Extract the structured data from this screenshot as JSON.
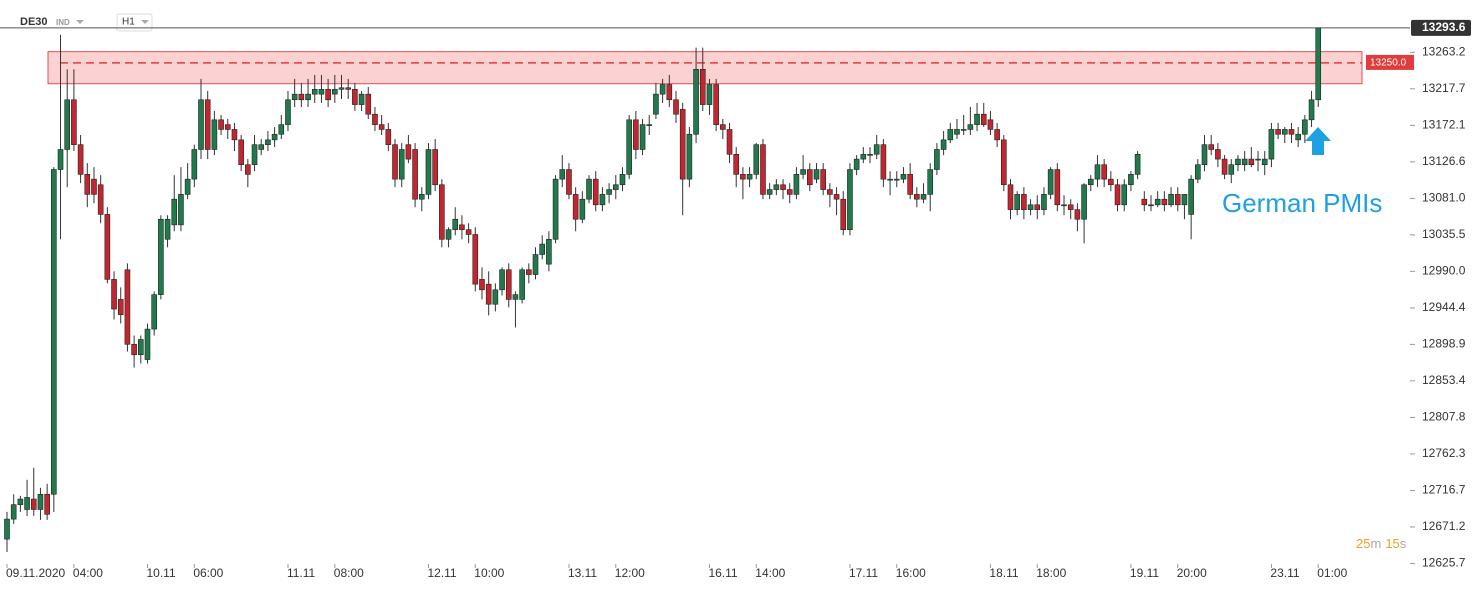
{
  "chart_data": {
    "type": "candlestick",
    "symbol": "DE30",
    "instrument_type": "IND",
    "timeframe": "H1",
    "up_color": "#1f7a4c",
    "down_color": "#c3262e",
    "ylim": [
      12625,
      13301
    ],
    "yticks": [
      13263.2,
      13217.7,
      13172.1,
      13126.6,
      {
        "value": 13081.0,
        "label": "13081.0"
      },
      13035.5,
      {
        "value": 12990.0,
        "label": "12990.0"
      },
      12944.4,
      12898.9,
      12853.4,
      12807.8,
      12762.3,
      12716.7,
      12671.2,
      12625.7
    ],
    "last_price": 13293.6,
    "resistance_level": {
      "value": 13250.0,
      "label": "13250.0"
    },
    "resistance_zone": [
      13224,
      13264
    ],
    "annotation": "German PMIs",
    "countdown": {
      "minutes": 25,
      "minutes_unit": "m",
      "seconds": 15,
      "seconds_unit": "s"
    },
    "categories": [
      "09.11.2020",
      null,
      null,
      null,
      null,
      null,
      null,
      null,
      null,
      null,
      "04:00",
      null,
      null,
      null,
      null,
      null,
      null,
      null,
      null,
      null,
      null,
      "10.11",
      null,
      null,
      null,
      null,
      null,
      null,
      "06:00",
      null,
      null,
      null,
      null,
      null,
      null,
      null,
      null,
      null,
      null,
      null,
      null,
      null,
      "11.11",
      null,
      null,
      null,
      null,
      null,
      null,
      "08:00",
      null,
      null,
      null,
      null,
      null,
      null,
      null,
      null,
      null,
      null,
      null,
      null,
      null,
      "12.11",
      null,
      null,
      null,
      null,
      null,
      null,
      "10:00",
      null,
      null,
      null,
      null,
      null,
      null,
      null,
      null,
      null,
      null,
      null,
      null,
      null,
      "13.11",
      null,
      null,
      null,
      null,
      null,
      null,
      "12:00",
      null,
      null,
      null,
      null,
      null,
      null,
      null,
      null,
      null,
      null,
      null,
      null,
      null,
      "16.11",
      null,
      null,
      null,
      null,
      null,
      null,
      "14:00",
      null,
      null,
      null,
      null,
      null,
      null,
      null,
      null,
      null,
      null,
      null,
      null,
      null,
      "17.11",
      null,
      null,
      null,
      null,
      null,
      null,
      "16:00",
      null,
      null,
      null,
      null,
      null,
      null,
      null,
      null,
      null,
      null,
      null,
      null,
      null,
      "18.11",
      null,
      null,
      null,
      null,
      null,
      null,
      "18:00",
      null,
      null,
      null,
      null,
      null,
      null,
      null,
      null,
      null,
      null,
      null,
      null,
      null,
      "19.11",
      null,
      null,
      null,
      null,
      null,
      null,
      "20:00",
      null,
      null,
      null,
      null,
      null,
      null,
      null,
      null,
      null,
      null,
      null,
      null,
      null,
      "23.11",
      null,
      null,
      null,
      null,
      null,
      null,
      "01:00"
    ],
    "ohlc": [
      [
        12656,
        12690,
        12640,
        12681
      ],
      [
        12681,
        12712,
        12675,
        12699
      ],
      [
        12699,
        12710,
        12690,
        12706
      ],
      [
        12693,
        12730,
        12685,
        12708
      ],
      [
        12706,
        12745,
        12685,
        12693
      ],
      [
        12693,
        12720,
        12680,
        12712
      ],
      [
        12712,
        12725,
        12680,
        12687
      ],
      [
        12712,
        13120,
        12690,
        13117
      ],
      [
        13117,
        13285,
        13030,
        13142
      ],
      [
        13142,
        13242,
        13095,
        13204
      ],
      [
        13204,
        13242,
        13140,
        13148
      ],
      [
        13148,
        13160,
        13100,
        13111
      ],
      [
        13111,
        13125,
        13070,
        13086
      ],
      [
        13105,
        13120,
        13075,
        13086
      ],
      [
        13098,
        13110,
        13050,
        13061
      ],
      [
        13061,
        13070,
        12975,
        12980
      ],
      [
        12980,
        12990,
        12930,
        12943
      ],
      [
        12955,
        12970,
        12925,
        12936
      ],
      [
        12992,
        13000,
        12890,
        12899
      ],
      [
        12899,
        12910,
        12870,
        12886
      ],
      [
        12886,
        12910,
        12875,
        12905
      ],
      [
        12880,
        12925,
        12875,
        12918
      ],
      [
        12918,
        12965,
        12910,
        12961
      ],
      [
        12961,
        13060,
        12955,
        13055
      ],
      [
        13030,
        13060,
        13020,
        13055
      ],
      [
        13048,
        13110,
        13040,
        13080
      ],
      [
        13048,
        13120,
        13040,
        13086
      ],
      [
        13086,
        13125,
        13080,
        13105
      ],
      [
        13105,
        13148,
        13095,
        13142
      ],
      [
        13142,
        13230,
        13130,
        13204
      ],
      [
        13204,
        13215,
        13130,
        13142
      ],
      [
        13142,
        13190,
        13135,
        13179
      ],
      [
        13179,
        13185,
        13160,
        13167
      ],
      [
        13173,
        13180,
        13155,
        13167
      ],
      [
        13167,
        13175,
        13140,
        13154
      ],
      [
        13154,
        13160,
        13115,
        13123
      ],
      [
        13123,
        13130,
        13095,
        13111
      ],
      [
        13123,
        13160,
        13115,
        13148
      ],
      [
        13142,
        13155,
        13135,
        13148
      ],
      [
        13148,
        13165,
        13140,
        13154
      ],
      [
        13154,
        13170,
        13145,
        13161
      ],
      [
        13161,
        13185,
        13155,
        13173
      ],
      [
        13173,
        13215,
        13165,
        13204
      ],
      [
        13204,
        13230,
        13195,
        13211
      ],
      [
        13211,
        13225,
        13195,
        13204
      ],
      [
        13204,
        13230,
        13195,
        13211
      ],
      [
        13211,
        13235,
        13200,
        13217
      ],
      [
        13211,
        13235,
        13200,
        13217
      ],
      [
        13217,
        13230,
        13195,
        13204
      ],
      [
        13211,
        13235,
        13200,
        13217
      ],
      [
        13217,
        13235,
        13205,
        13219
      ],
      [
        13219,
        13230,
        13205,
        13217
      ],
      [
        13217,
        13225,
        13190,
        13198
      ],
      [
        13198,
        13215,
        13190,
        13211
      ],
      [
        13211,
        13220,
        13180,
        13186
      ],
      [
        13186,
        13195,
        13165,
        13173
      ],
      [
        13173,
        13185,
        13160,
        13167
      ],
      [
        13167,
        13175,
        13140,
        13148
      ],
      [
        13148,
        13155,
        13095,
        13105
      ],
      [
        13105,
        13150,
        13095,
        13142
      ],
      [
        13148,
        13160,
        13125,
        13130
      ],
      [
        13142,
        13150,
        13070,
        13080
      ],
      [
        13080,
        13095,
        13065,
        13086
      ],
      [
        13086,
        13150,
        13080,
        13142
      ],
      [
        13142,
        13155,
        13090,
        13098
      ],
      [
        13098,
        13105,
        13020,
        13030
      ],
      [
        13030,
        13045,
        13020,
        13042
      ],
      [
        13042,
        13070,
        13035,
        13055
      ],
      [
        13048,
        13060,
        13030,
        13042
      ],
      [
        13042,
        13050,
        13025,
        13036
      ],
      [
        13036,
        13045,
        12965,
        12974
      ],
      [
        12980,
        12995,
        12955,
        12967
      ],
      [
        12974,
        12990,
        12935,
        12949
      ],
      [
        12949,
        12975,
        12940,
        12967
      ],
      [
        12967,
        12995,
        12960,
        12992
      ],
      [
        12992,
        13000,
        12945,
        12955
      ],
      [
        12955,
        12965,
        12920,
        12961
      ],
      [
        12955,
        12995,
        12950,
        12992
      ],
      [
        12992,
        13000,
        12975,
        12986
      ],
      [
        12986,
        13020,
        12980,
        13011
      ],
      [
        13011,
        13035,
        13005,
        13024
      ],
      [
        12999,
        13040,
        12990,
        13030
      ],
      [
        13030,
        13110,
        13025,
        13105
      ],
      [
        13105,
        13135,
        13095,
        13117
      ],
      [
        13117,
        13125,
        13080,
        13086
      ],
      [
        13086,
        13095,
        13040,
        13055
      ],
      [
        13055,
        13090,
        13050,
        13080
      ],
      [
        13080,
        13110,
        13075,
        13105
      ],
      [
        13105,
        13115,
        13065,
        13073
      ],
      [
        13073,
        13095,
        13065,
        13086
      ],
      [
        13086,
        13100,
        13075,
        13092
      ],
      [
        13092,
        13110,
        13080,
        13098
      ],
      [
        13098,
        13120,
        13090,
        13111
      ],
      [
        13111,
        13185,
        13105,
        13179
      ],
      [
        13179,
        13190,
        13130,
        13142
      ],
      [
        13142,
        13180,
        13135,
        13173
      ],
      [
        13173,
        13185,
        13160,
        13173
      ],
      [
        13186,
        13225,
        13180,
        13211
      ],
      [
        13211,
        13230,
        13200,
        13223
      ],
      [
        13223,
        13235,
        13195,
        13204
      ],
      [
        13204,
        13215,
        13175,
        13186
      ],
      [
        13192,
        13200,
        13060,
        13105
      ],
      [
        13105,
        13170,
        13095,
        13161
      ],
      [
        13161,
        13269,
        13150,
        13242
      ],
      [
        13242,
        13269,
        13190,
        13198
      ],
      [
        13198,
        13230,
        13185,
        13223
      ],
      [
        13223,
        13230,
        13165,
        13173
      ],
      [
        13173,
        13180,
        13155,
        13167
      ],
      [
        13167,
        13175,
        13125,
        13136
      ],
      [
        13136,
        13145,
        13095,
        13111
      ],
      [
        13111,
        13120,
        13080,
        13105
      ],
      [
        13105,
        13120,
        13095,
        13111
      ],
      [
        13111,
        13150,
        13105,
        13148
      ],
      [
        13148,
        13155,
        13080,
        13086
      ],
      [
        13086,
        13100,
        13080,
        13092
      ],
      [
        13092,
        13105,
        13085,
        13098
      ],
      [
        13098,
        13105,
        13080,
        13092
      ],
      [
        13092,
        13100,
        13075,
        13086
      ],
      [
        13086,
        13120,
        13080,
        13111
      ],
      [
        13111,
        13135,
        13105,
        13117
      ],
      [
        13117,
        13125,
        13090,
        13098
      ],
      [
        13105,
        13125,
        13100,
        13117
      ],
      [
        13117,
        13125,
        13085,
        13092
      ],
      [
        13092,
        13100,
        13070,
        13086
      ],
      [
        13086,
        13095,
        13060,
        13080
      ],
      [
        13080,
        13090,
        13035,
        13042
      ],
      [
        13042,
        13125,
        13035,
        13117
      ],
      [
        13117,
        13135,
        13110,
        13130
      ],
      [
        13130,
        13145,
        13125,
        13136
      ],
      [
        13136,
        13145,
        13125,
        13136
      ],
      [
        13136,
        13160,
        13130,
        13148
      ],
      [
        13148,
        13155,
        13095,
        13105
      ],
      [
        13105,
        13115,
        13085,
        13105
      ],
      [
        13105,
        13115,
        13095,
        13105
      ],
      [
        13105,
        13120,
        13100,
        13111
      ],
      [
        13111,
        13125,
        13080,
        13086
      ],
      [
        13086,
        13095,
        13070,
        13080
      ],
      [
        13080,
        13100,
        13075,
        13086
      ],
      [
        13086,
        13125,
        13065,
        13117
      ],
      [
        13117,
        13150,
        13110,
        13142
      ],
      [
        13142,
        13165,
        13135,
        13154
      ],
      [
        13154,
        13175,
        13150,
        13167
      ],
      [
        13161,
        13180,
        13155,
        13167
      ],
      [
        13167,
        13185,
        13160,
        13167
      ],
      [
        13167,
        13195,
        13160,
        13173
      ],
      [
        13173,
        13200,
        13165,
        13186
      ],
      [
        13186,
        13200,
        13170,
        13173
      ],
      [
        13179,
        13190,
        13160,
        13167
      ],
      [
        13167,
        13175,
        13145,
        13154
      ],
      [
        13154,
        13160,
        13090,
        13098
      ],
      [
        13098,
        13105,
        13055,
        13067
      ],
      [
        13067,
        13090,
        13060,
        13086
      ],
      [
        13086,
        13095,
        13055,
        13067
      ],
      [
        13067,
        13080,
        13060,
        13073
      ],
      [
        13073,
        13085,
        13055,
        13067
      ],
      [
        13067,
        13095,
        13060,
        13086
      ],
      [
        13086,
        13120,
        13080,
        13117
      ],
      [
        13117,
        13125,
        13065,
        13073
      ],
      [
        13073,
        13085,
        13060,
        13073
      ],
      [
        13073,
        13080,
        13055,
        13067
      ],
      [
        13067,
        13075,
        13040,
        13055
      ],
      [
        13055,
        13100,
        13025,
        13098
      ],
      [
        13098,
        13110,
        13090,
        13105
      ],
      [
        13105,
        13135,
        13095,
        13123
      ],
      [
        13123,
        13130,
        13095,
        13105
      ],
      [
        13105,
        13115,
        13090,
        13098
      ],
      [
        13098,
        13105,
        13065,
        13073
      ],
      [
        13073,
        13105,
        13065,
        13098
      ],
      [
        13098,
        13115,
        13090,
        13111
      ],
      [
        13111,
        13140,
        13105,
        13136
      ],
      [
        13080,
        13090,
        13065,
        13073
      ],
      [
        13073,
        13085,
        13065,
        13073
      ],
      [
        13073,
        13090,
        13070,
        13080
      ],
      [
        13080,
        13090,
        13065,
        13073
      ],
      [
        13073,
        13095,
        13070,
        13086
      ],
      [
        13086,
        13095,
        13065,
        13073
      ],
      [
        13073,
        13085,
        13055,
        13086
      ],
      [
        13061,
        13110,
        13030,
        13105
      ],
      [
        13105,
        13130,
        13100,
        13123
      ],
      [
        13123,
        13160,
        13115,
        13148
      ],
      [
        13148,
        13160,
        13135,
        13142
      ],
      [
        13142,
        13150,
        13120,
        13130
      ],
      [
        13130,
        13135,
        13105,
        13111
      ],
      [
        13111,
        13130,
        13100,
        13123
      ],
      [
        13123,
        13135,
        13115,
        13130
      ],
      [
        13123,
        13140,
        13115,
        13130
      ],
      [
        13130,
        13145,
        13120,
        13123
      ],
      [
        13130,
        13140,
        13115,
        13130
      ],
      [
        13123,
        13140,
        13110,
        13130
      ],
      [
        13130,
        13175,
        13120,
        13167
      ],
      [
        13167,
        13175,
        13155,
        13161
      ],
      [
        13161,
        13170,
        13150,
        13167
      ],
      [
        13167,
        13175,
        13150,
        13161
      ],
      [
        13154,
        13170,
        13145,
        13161
      ],
      [
        13161,
        13185,
        13150,
        13179
      ],
      [
        13179,
        13215,
        13170,
        13204
      ],
      [
        13204,
        13293.6,
        13195,
        13293.6
      ]
    ]
  }
}
